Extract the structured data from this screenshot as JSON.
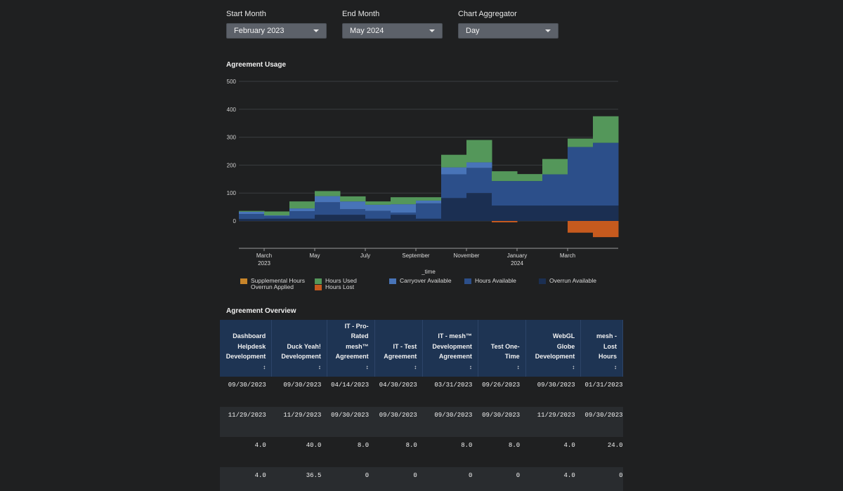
{
  "filters": [
    {
      "label": "Start Month",
      "value": "February 2023"
    },
    {
      "label": "End Month",
      "value": "May 2024"
    },
    {
      "label": "Chart Aggregator",
      "value": "Day"
    }
  ],
  "chart_section_title": "Agreement Usage",
  "chart_data": {
    "type": "area",
    "title": "Agreement Usage",
    "xlabel": "_time",
    "ylabel": "",
    "ylim": [
      -75,
      500
    ],
    "y_ticks": [
      "500",
      "400",
      "300",
      "200",
      "100",
      "0"
    ],
    "x_ticks": [
      {
        "label": "March",
        "sub": "2023",
        "month": 1
      },
      {
        "label": "May",
        "sub": "",
        "month": 3
      },
      {
        "label": "July",
        "sub": "",
        "month": 5
      },
      {
        "label": "September",
        "sub": "",
        "month": 7
      },
      {
        "label": "November",
        "sub": "",
        "month": 9
      },
      {
        "label": "January",
        "sub": "2024",
        "month": 11
      },
      {
        "label": "March",
        "sub": "",
        "month": 13
      }
    ],
    "months": [
      "Feb 2023",
      "Mar 2023",
      "Apr 2023",
      "May 2023",
      "Jun 2023",
      "Jul 2023",
      "Aug 2023",
      "Sep 2023",
      "Oct 2023",
      "Nov 2023",
      "Dec 2023",
      "Jan 2024",
      "Feb 2024",
      "Mar 2024",
      "Apr 2024"
    ],
    "series": [
      {
        "name": "Overrun Available",
        "color": "#1b2f52",
        "values": [
          7,
          8,
          8,
          22,
          22,
          8,
          22,
          8,
          82,
          100,
          55,
          55,
          55,
          55,
          55
        ]
      },
      {
        "name": "Hours Available",
        "color": "#2c4f8a",
        "values": [
          18,
          10,
          27,
          45,
          20,
          28,
          8,
          55,
          85,
          90,
          88,
          88,
          112,
          210,
          225
        ]
      },
      {
        "name": "Carryover Available",
        "color": "#4874b8",
        "values": [
          8,
          2,
          10,
          22,
          28,
          22,
          30,
          10,
          25,
          20,
          0,
          0,
          0,
          0,
          0
        ]
      },
      {
        "name": "Hours Used",
        "color": "#54975a",
        "values": [
          3,
          14,
          25,
          18,
          18,
          12,
          25,
          12,
          45,
          80,
          35,
          25,
          55,
          30,
          95
        ]
      },
      {
        "name": "Supplemental Hours Overrun Applied",
        "color": "#c8852a",
        "values": [
          0,
          0,
          0,
          0,
          0,
          0,
          0,
          0,
          0,
          0,
          0,
          0,
          0,
          0,
          0
        ]
      },
      {
        "name": "Hours Lost",
        "color": "#c65a1e",
        "values": [
          0,
          0,
          0,
          0,
          0,
          0,
          0,
          0,
          0,
          0,
          -5,
          0,
          0,
          -42,
          -58
        ]
      }
    ],
    "legend": [
      {
        "name": "Supplemental Hours",
        "name2": "Overrun Applied",
        "color": "#c8852a"
      },
      {
        "name": "Hours Used",
        "name2": "Hours Lost",
        "color": "#54975a",
        "color2": "#c65a1e"
      },
      {
        "name": "Carryover Available",
        "name2": "",
        "color": "#4874b8"
      },
      {
        "name": "Hours Available",
        "name2": "",
        "color": "#2c4f8a"
      },
      {
        "name": "Overrun Available",
        "name2": "",
        "color": "#1b2f52"
      }
    ]
  },
  "table_section_title": "Agreement Overview",
  "table": {
    "columns": [
      [
        "Dashboard",
        "Helpdesk",
        "Development"
      ],
      [
        "Duck Yeah!",
        "Development"
      ],
      [
        "IT - Pro-",
        "Rated",
        "mesh™",
        "Agreement"
      ],
      [
        "IT - Test",
        "Agreement"
      ],
      [
        "IT - mesh™",
        "Development",
        "Agreement"
      ],
      [
        "Test One-",
        "Time"
      ],
      [
        "WebGL",
        "Globe",
        "Development"
      ],
      [
        "mesh -",
        "Lost Hours"
      ]
    ],
    "sort_icon": "↕",
    "rows": [
      [
        "09/30/2023",
        "09/30/2023",
        "04/14/2023",
        "04/30/2023",
        "03/31/2023",
        "09/26/2023",
        "09/30/2023",
        "01/31/2023"
      ],
      [
        "11/29/2023",
        "11/29/2023",
        "09/30/2023",
        "09/30/2023",
        "09/30/2023",
        "09/30/2023",
        "11/29/2023",
        "09/30/2023"
      ],
      [
        "4.0",
        "40.0",
        "8.0",
        "8.0",
        "8.0",
        "8.0",
        "4.0",
        "24.0"
      ],
      [
        "4.0",
        "36.5",
        "0",
        "0",
        "0",
        "0",
        "4.0",
        "0"
      ]
    ]
  }
}
